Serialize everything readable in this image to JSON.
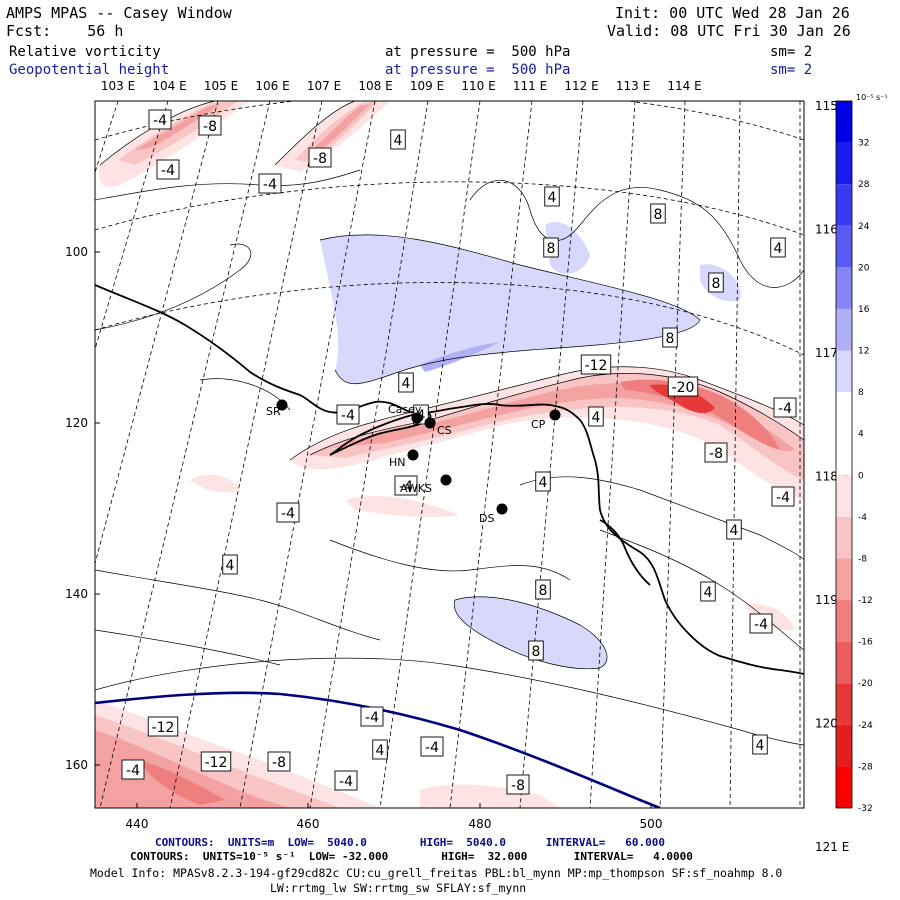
{
  "header": {
    "left_line1": "AMPS MPAS -- Casey Window",
    "left_line2": "Fcst:    56 h",
    "init": "Init: 00 UTC Wed 28 Jan 26",
    "valid": "Valid: 08 UTC Fri 30 Jan 26",
    "field1_name": "Relative vorticity",
    "field1_level": "at pressure =  500 hPa",
    "field1_sm": "sm= 2",
    "field2_name": "Geopotential height",
    "field2_level": "at pressure =  500 hPa",
    "field2_sm": "sm= 2"
  },
  "map": {
    "top_lon_labels": [
      "103 E",
      "104 E",
      "105 E",
      "106 E",
      "107 E",
      "108 E",
      "109 E",
      "110 E",
      "111 E",
      "112 E",
      "113 E",
      "114 E"
    ],
    "right_lon_labels": [
      "115 E",
      "116 E",
      "117 E",
      "118 E",
      "119 E",
      "120 E",
      "121 E"
    ],
    "x_ticks": [
      "440",
      "460",
      "480",
      "500"
    ],
    "y_ticks": [
      "100",
      "120",
      "140",
      "160"
    ],
    "stations": [
      {
        "id": "SR",
        "label": "SR"
      },
      {
        "id": "Casey",
        "label": "Casey"
      },
      {
        "id": "CS",
        "label": "CS"
      },
      {
        "id": "CP",
        "label": "CP"
      },
      {
        "id": "HN",
        "label": "HN"
      },
      {
        "id": "AWKS",
        "label": "AWKS"
      },
      {
        "id": "DS",
        "label": "DS"
      }
    ],
    "contour_labels": [
      "-4",
      "-8",
      "-4",
      "-8",
      "4",
      "-4",
      "8",
      "8",
      "8",
      "4",
      "4",
      "8",
      "4",
      "-12",
      "-20",
      "-4",
      "4",
      "-4",
      "4",
      "-4",
      "4",
      "-8",
      "-4",
      "-4",
      "4",
      "4",
      "8",
      "4",
      "-4",
      "8",
      "-12",
      "-4",
      "-12",
      "-8",
      "-4",
      "4",
      "-4",
      "-4",
      "-8",
      "4"
    ],
    "colors": {
      "plot_border": "#000000",
      "height_contour": "#000080",
      "coast": "#000000"
    }
  },
  "colorbar": {
    "units": "10⁻⁵ s⁻¹",
    "labels": [
      "32",
      "28",
      "24",
      "20",
      "16",
      "12",
      "8",
      "4",
      "0",
      "-4",
      "-8",
      "-12",
      "-16",
      "-20",
      "-24",
      "-28",
      "-32"
    ],
    "colors": [
      "#0000e6",
      "#1a1aee",
      "#3a3af2",
      "#5a5af5",
      "#8585f7",
      "#b0b0f9",
      "#d8d8fc",
      "#ffffff",
      "#ffffff",
      "#fde3e3",
      "#f9c4c4",
      "#f4a1a1",
      "#ef7f7f",
      "#ea5e5e",
      "#e63a3a",
      "#e31e1e",
      "#ff0000"
    ]
  },
  "footer": {
    "line1": "CONTOURS:  UNITS=m  LOW=  5040.0        HIGH=  5040.0      INTERVAL=   60.000",
    "line2": "CONTOURS:  UNITS=10⁻⁵ s⁻¹  LOW= -32.000        HIGH=  32.000       INTERVAL=   4.0000",
    "line3": "Model Info: MPASv8.2.3-194-gf29cd82c CU:cu_grell_freitas PBL:bl_mynn MP:mp_thompson SF:sf_noahmp 8.0",
    "line4": "LW:rrtmg_lw SW:rrtmg_sw SFLAY:sf_mynn"
  }
}
